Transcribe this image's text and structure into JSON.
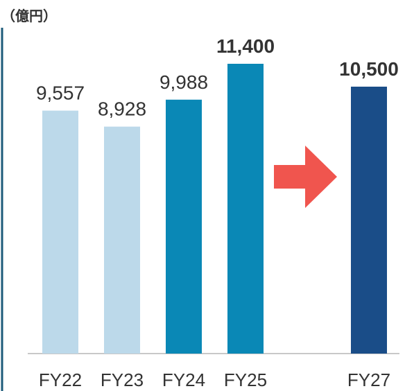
{
  "chart_data": {
    "type": "bar",
    "unit_label": "（億円）",
    "categories": [
      "FY22",
      "FY23",
      "FY24",
      "FY25",
      null,
      "FY27"
    ],
    "values": [
      9557,
      8928,
      9988,
      11400,
      null,
      10500
    ],
    "value_labels": [
      "9,557",
      "8,928",
      "9,988",
      "11,400",
      null,
      "10,500"
    ],
    "colors": [
      "#bcd9ea",
      "#bcd9ea",
      "#0a88b6",
      "#0a88b6",
      null,
      "#1a4d88"
    ],
    "bold_labels": [
      false,
      false,
      false,
      true,
      null,
      true
    ]
  }
}
